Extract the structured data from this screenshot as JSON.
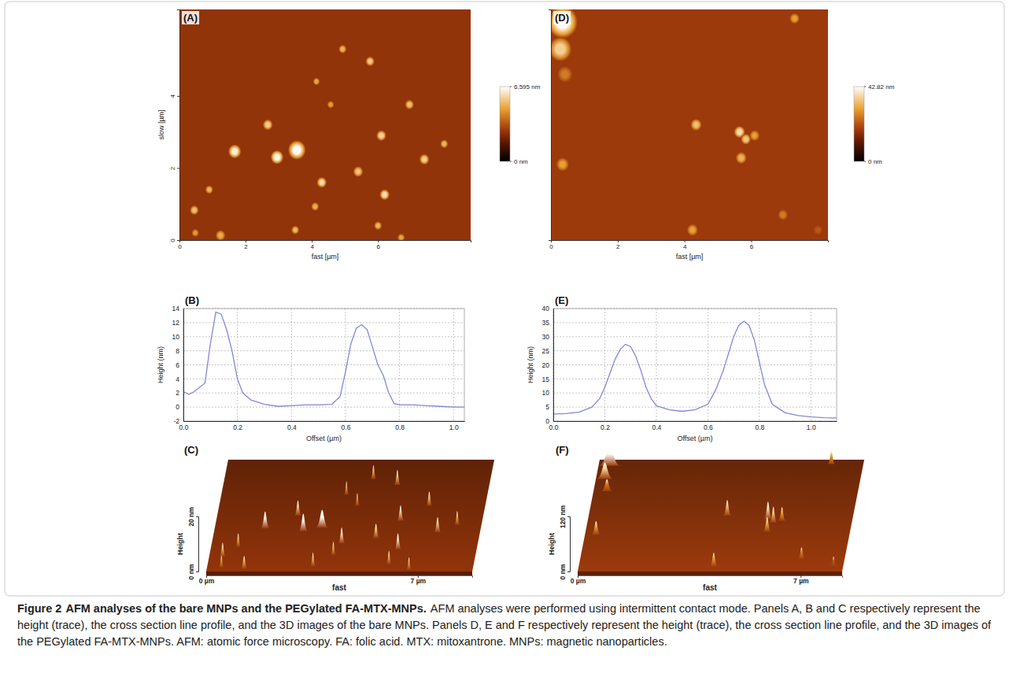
{
  "chart_data": [
    {
      "type": "image",
      "panel": "(A)",
      "x_label": "fast [µm]",
      "y_label": "slow [µm]",
      "xlim": [
        0,
        8.8
      ],
      "ylim": [
        0,
        6.4
      ],
      "xticks": [
        0,
        2,
        4,
        6
      ],
      "yticks": [
        0,
        2,
        4
      ],
      "background": 2.6,
      "x": [
        0.45,
        0.48,
        0.9,
        1.24,
        1.67,
        2.67,
        3.55,
        4.3,
        4.57,
        4.93,
        5.76,
        6.1,
        6.2,
        6.95,
        7.4,
        8.0,
        5.4,
        4.1,
        3.5,
        6.7,
        6.0,
        2.95,
        4.14
      ],
      "y": [
        0.83,
        0.2,
        1.4,
        0.13,
        2.46,
        3.2,
        2.5,
        1.6,
        3.76,
        5.3,
        4.96,
        2.9,
        1.26,
        3.76,
        2.24,
        2.67,
        1.9,
        0.93,
        0.28,
        0.07,
        0.4,
        2.3,
        4.4
      ],
      "heights": [
        5.2,
        4.5,
        5.0,
        4.8,
        6.2,
        5.5,
        6.5,
        5.8,
        4.6,
        5.0,
        5.4,
        5.6,
        5.9,
        5.2,
        5.5,
        5.0,
        5.3,
        4.9,
        5.1,
        4.7,
        5.0,
        6.4,
        4.8
      ],
      "widths": [
        0.18,
        0.15,
        0.16,
        0.2,
        0.26,
        0.2,
        0.36,
        0.2,
        0.14,
        0.16,
        0.18,
        0.2,
        0.2,
        0.18,
        0.2,
        0.16,
        0.2,
        0.16,
        0.16,
        0.15,
        0.16,
        0.26,
        0.14
      ],
      "color_range": [
        0,
        6.595
      ],
      "color_ticks": [
        {
          "value": 6.595,
          "label": "6.595 nm"
        },
        {
          "value": 0,
          "label": "0 nm"
        }
      ]
    },
    {
      "type": "line",
      "panel": "(B)",
      "x_label": "Offset (µm)",
      "y_label": "Height (nm)",
      "xlim": [
        0,
        1.04
      ],
      "ylim": [
        -2,
        14
      ],
      "xticks": [
        {
          "value": 0,
          "label": "0.0"
        },
        0.2,
        0.4,
        0.6,
        0.8,
        {
          "value": 1,
          "label": "1.0"
        }
      ],
      "yticks": [
        -2,
        0,
        2,
        4,
        6,
        8,
        10,
        12,
        14
      ],
      "grid": true,
      "color": "#8088d8",
      "x": [
        0,
        0.02,
        0.04,
        0.06,
        0.08,
        0.1,
        0.12,
        0.14,
        0.16,
        0.18,
        0.2,
        0.22,
        0.25,
        0.3,
        0.35,
        0.4,
        0.45,
        0.5,
        0.55,
        0.58,
        0.6,
        0.62,
        0.64,
        0.66,
        0.68,
        0.7,
        0.72,
        0.74,
        0.76,
        0.78,
        0.8,
        0.85,
        0.9,
        0.95,
        1.0,
        1.04
      ],
      "values": [
        2.2,
        1.8,
        2.2,
        2.8,
        3.4,
        9,
        13.5,
        13.2,
        11,
        8,
        4,
        2,
        1,
        0.4,
        0.1,
        0.2,
        0.3,
        0.3,
        0.4,
        1.5,
        5,
        9,
        11.2,
        11.7,
        11,
        8.5,
        6,
        4.5,
        2,
        0.5,
        0.3,
        0.3,
        0.2,
        0.1,
        0,
        0
      ]
    },
    {
      "type": "surface",
      "panel": "(C)",
      "x_label": "fast",
      "z_label": "Height",
      "xlim": [
        0,
        8.8
      ],
      "ylim": [
        0,
        6.4
      ],
      "zlim": [
        0,
        20
      ],
      "xticks": [
        {
          "value": 0,
          "label": "0 µm"
        },
        {
          "value": 7,
          "label": "7 µm"
        }
      ],
      "zticks": [
        {
          "value": 0,
          "label": "0 nm"
        },
        {
          "value": 20,
          "label": "20 nm"
        }
      ],
      "background": 2.6,
      "x": [
        0.45,
        0.48,
        0.9,
        1.24,
        1.67,
        2.67,
        3.55,
        4.3,
        4.57,
        4.93,
        5.76,
        6.1,
        6.2,
        6.95,
        7.4,
        8.0,
        5.4,
        4.1,
        3.5,
        6.7,
        6.0,
        2.95,
        4.14
      ],
      "y": [
        0.83,
        0.2,
        1.4,
        0.13,
        2.46,
        3.2,
        2.5,
        1.6,
        3.76,
        5.3,
        4.96,
        2.9,
        1.26,
        3.76,
        2.24,
        2.67,
        1.9,
        0.93,
        0.28,
        0.07,
        0.4,
        2.3,
        4.4
      ],
      "heights": [
        5.2,
        4.5,
        5.0,
        4.8,
        6.2,
        5.5,
        6.5,
        5.8,
        4.6,
        5.0,
        5.4,
        5.6,
        5.9,
        5.2,
        5.5,
        5.0,
        5.3,
        4.9,
        5.1,
        4.7,
        5.0,
        6.4,
        4.8
      ],
      "widths": [
        0.18,
        0.15,
        0.16,
        0.2,
        0.26,
        0.2,
        0.36,
        0.2,
        0.14,
        0.16,
        0.18,
        0.2,
        0.2,
        0.18,
        0.2,
        0.16,
        0.2,
        0.16,
        0.16,
        0.15,
        0.16,
        0.26,
        0.14
      ],
      "color_range": [
        0,
        6.595
      ]
    },
    {
      "type": "image",
      "panel": "(D)",
      "x_label": "fast [µm]",
      "tick_labels": "x",
      "xlim": [
        0,
        8.3
      ],
      "ylim": [
        0,
        6.4
      ],
      "xticks": [
        0,
        2,
        4,
        6
      ],
      "background": 18,
      "x": [
        0.35,
        0.28,
        0.42,
        7.3,
        4.35,
        0.35,
        5.65,
        5.84,
        6.1,
        5.7,
        4.24,
        6.95,
        8.0
      ],
      "y": [
        6.05,
        5.3,
        4.6,
        6.15,
        3.2,
        2.1,
        3.0,
        2.8,
        2.9,
        2.28,
        0.28,
        0.7,
        0.28
      ],
      "heights": [
        42,
        36,
        26,
        30,
        34,
        30,
        38,
        35,
        30,
        32,
        30,
        26,
        22
      ],
      "widths": [
        0.6,
        0.45,
        0.3,
        0.2,
        0.22,
        0.25,
        0.22,
        0.2,
        0.2,
        0.22,
        0.22,
        0.2,
        0.18
      ],
      "color_range": [
        0,
        42.82
      ],
      "color_ticks": [
        {
          "value": 42.82,
          "label": "42.82 nm"
        },
        {
          "value": 0,
          "label": "0 nm"
        }
      ]
    },
    {
      "type": "line",
      "panel": "(E)",
      "x_label": "Offset (µm)",
      "y_label": "Height (nm)",
      "xlim": [
        0,
        1.1
      ],
      "ylim": [
        0,
        40
      ],
      "xticks": [
        {
          "value": 0,
          "label": "0.0"
        },
        0.2,
        0.4,
        0.6,
        0.8,
        {
          "value": 1,
          "label": "1.0"
        }
      ],
      "yticks": [
        0,
        5,
        10,
        15,
        20,
        25,
        30,
        35,
        40
      ],
      "grid": true,
      "color": "#8088d8",
      "x": [
        0,
        0.05,
        0.1,
        0.15,
        0.18,
        0.2,
        0.22,
        0.24,
        0.26,
        0.28,
        0.3,
        0.32,
        0.34,
        0.36,
        0.38,
        0.4,
        0.45,
        0.5,
        0.55,
        0.6,
        0.63,
        0.66,
        0.68,
        0.7,
        0.72,
        0.74,
        0.76,
        0.78,
        0.8,
        0.82,
        0.85,
        0.9,
        0.95,
        1.0,
        1.05,
        1.1
      ],
      "values": [
        2.5,
        2.7,
        3.2,
        5,
        8,
        12,
        17,
        22,
        25.5,
        27.3,
        26.5,
        23,
        18,
        12,
        8,
        5.5,
        4,
        3.5,
        4,
        6,
        11,
        18,
        24,
        30,
        34,
        35.5,
        34,
        29,
        21,
        13,
        6,
        3,
        2,
        1.5,
        1.2,
        1.1
      ]
    },
    {
      "type": "surface",
      "panel": "(F)",
      "x_label": "fast",
      "z_label": "Height",
      "xlim": [
        0,
        8.3
      ],
      "ylim": [
        0,
        6.4
      ],
      "zlim": [
        0,
        120
      ],
      "xticks": [
        {
          "value": 0,
          "label": "0 µm"
        },
        {
          "value": 7,
          "label": "7 µm"
        }
      ],
      "zticks": [
        {
          "value": 0,
          "label": "0 nm"
        },
        {
          "value": 120,
          "label": "120 nm"
        }
      ],
      "background": 18,
      "x": [
        0.35,
        0.28,
        0.42,
        7.3,
        4.35,
        0.35,
        5.65,
        5.84,
        6.1,
        5.7,
        4.24,
        6.95,
        8.0
      ],
      "y": [
        6.05,
        5.3,
        4.6,
        6.15,
        3.2,
        2.1,
        3.0,
        2.8,
        2.9,
        2.28,
        0.28,
        0.7,
        0.28
      ],
      "heights": [
        42,
        36,
        26,
        30,
        34,
        30,
        38,
        35,
        30,
        32,
        30,
        26,
        22
      ],
      "widths": [
        0.6,
        0.45,
        0.3,
        0.2,
        0.22,
        0.25,
        0.22,
        0.2,
        0.2,
        0.22,
        0.22,
        0.2,
        0.18
      ],
      "color_range": [
        0,
        42.82
      ]
    }
  ],
  "caption": {
    "label": "Figure 2",
    "title": "AFM analyses of the bare MNPs and the PEGylated FA-MTX-MNPs.",
    "text": "AFM analyses were performed using intermittent contact mode. Panels A, B and C respectively represent the height (trace), the cross section line profile, and the 3D images of the bare MNPs. Panels D, E and F respectively represent the height (trace), the cross section line profile, and the 3D images of the PEGylated FA-MTX-MNPs. AFM: atomic force microscopy. FA: folic acid. MTX: mitoxantrone. MNPs: magnetic nanoparticles."
  }
}
